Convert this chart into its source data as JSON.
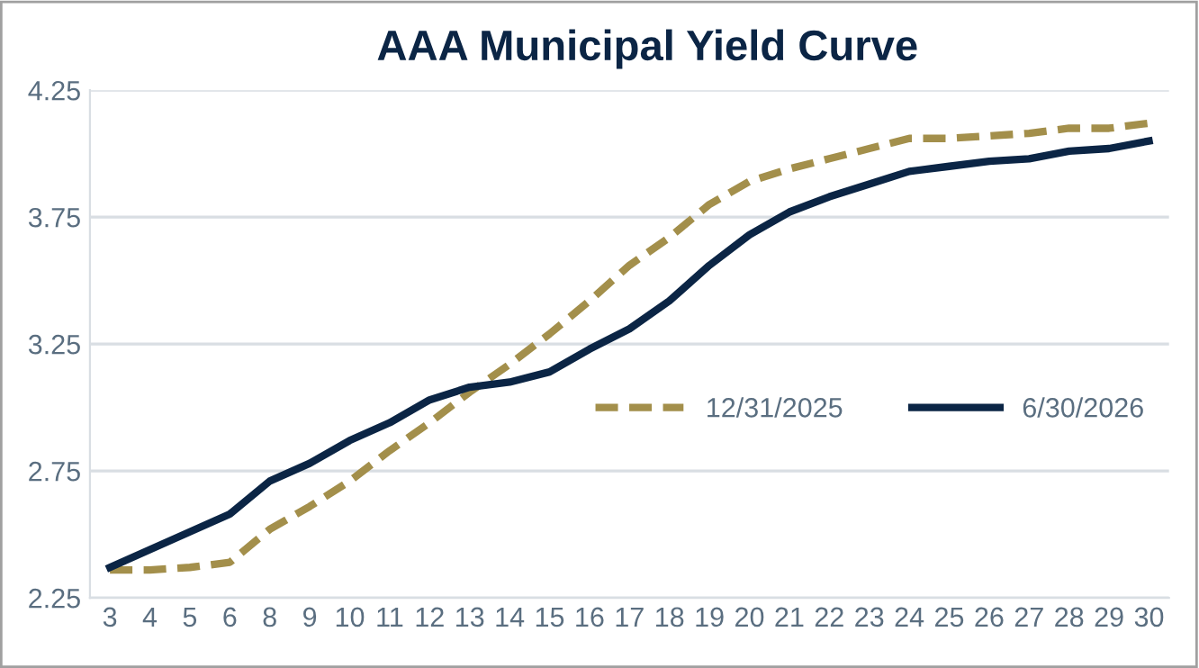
{
  "chart_data": {
    "type": "line",
    "title": "AAA Municipal Yield Curve",
    "categories": [
      "3",
      "4",
      "5",
      "6",
      "8",
      "9",
      "10",
      "11",
      "12",
      "13",
      "14",
      "15",
      "16",
      "17",
      "18",
      "19",
      "20",
      "21",
      "22",
      "23",
      "24",
      "25",
      "26",
      "27",
      "28",
      "29",
      "30"
    ],
    "series": [
      {
        "name": "12/31/2025",
        "color": "#a38f4b",
        "line_style": "dashed",
        "values": [
          2.36,
          2.36,
          2.37,
          2.39,
          2.52,
          2.61,
          2.71,
          2.83,
          2.94,
          3.06,
          3.17,
          3.29,
          3.42,
          3.56,
          3.67,
          3.8,
          3.89,
          3.94,
          3.98,
          4.02,
          4.06,
          4.06,
          4.07,
          4.08,
          4.1,
          4.1,
          4.12
        ]
      },
      {
        "name": "6/30/2026",
        "color": "#0b2545",
        "line_style": "solid",
        "values": [
          2.37,
          2.44,
          2.51,
          2.58,
          2.71,
          2.78,
          2.87,
          2.94,
          3.03,
          3.08,
          3.1,
          3.14,
          3.23,
          3.31,
          3.42,
          3.56,
          3.68,
          3.77,
          3.83,
          3.88,
          3.93,
          3.95,
          3.97,
          3.98,
          4.01,
          4.02,
          4.05
        ]
      }
    ],
    "ylim": [
      2.25,
      4.25
    ],
    "yticks": [
      2.25,
      2.75,
      3.25,
      3.75,
      4.25
    ],
    "grid": "y",
    "legend": "right"
  }
}
